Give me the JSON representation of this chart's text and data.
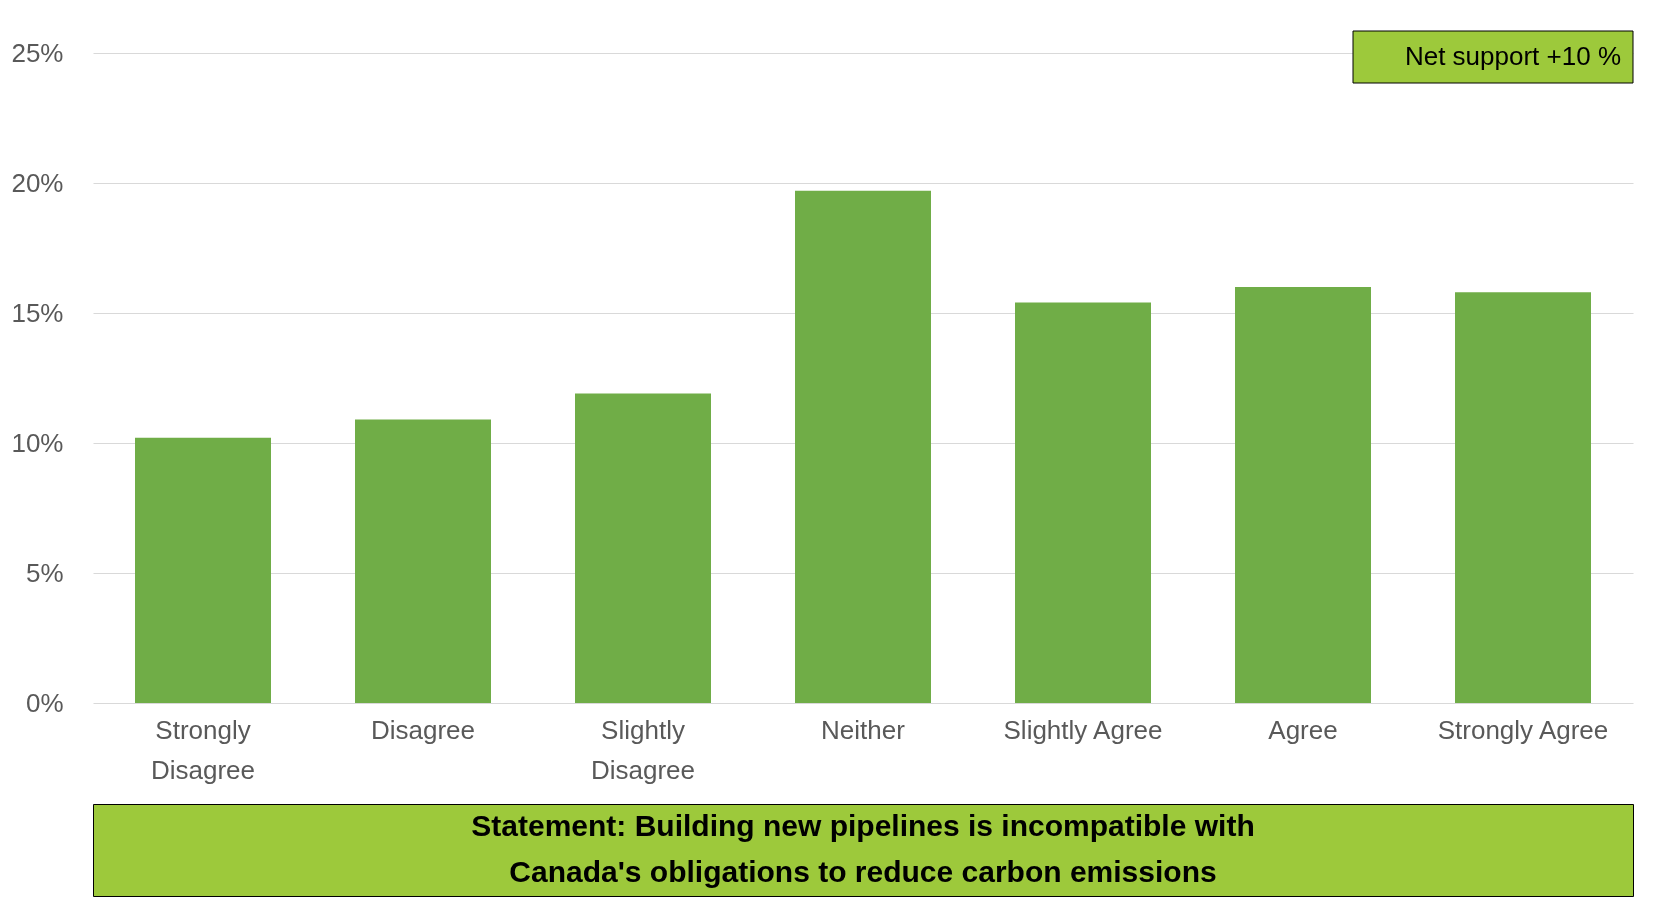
{
  "chart_data": {
    "type": "bar",
    "title": "Statement: Building new pipelines is incompatible with\nCanada's obligations to reduce carbon emissions",
    "categories": [
      "Strongly Disagree",
      "Disagree",
      "Slightly Disagree",
      "Neither",
      "Slightly Agree",
      "Agree",
      "Strongly Agree"
    ],
    "values": [
      10.2,
      10.9,
      11.9,
      19.7,
      15.4,
      16.0,
      15.8
    ],
    "color": "#70ad47",
    "ylim": [
      0,
      25
    ],
    "yticks": [
      {
        "value": 0,
        "label": "0%"
      },
      {
        "value": 5,
        "label": "5%"
      },
      {
        "value": 10,
        "label": "10%"
      },
      {
        "value": 15,
        "label": "15%"
      },
      {
        "value": 20,
        "label": "20%"
      },
      {
        "value": 25,
        "label": "25%"
      }
    ],
    "grid": "y",
    "annotations": [
      "Net support +10 %"
    ]
  }
}
